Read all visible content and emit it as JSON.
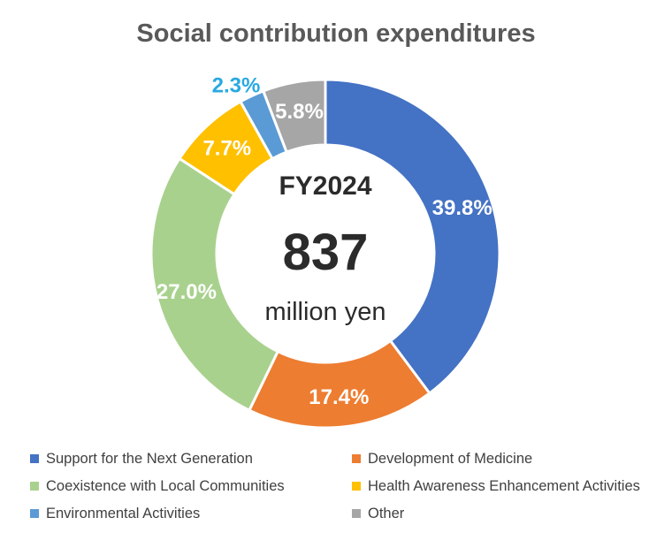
{
  "title": "Social contribution expenditures",
  "center": {
    "fiscal_year": "FY2024",
    "value": "837",
    "unit": "million yen"
  },
  "chart_data": {
    "type": "pie",
    "subtype": "donut",
    "title": "Social contribution expenditures",
    "categories": [
      "Support for the Next Generation",
      "Development of Medicine",
      "Coexistence with Local Communities",
      "Health Awareness Enhancement Activities",
      "Environmental Activities",
      "Other"
    ],
    "values": [
      39.8,
      17.4,
      27.0,
      7.7,
      2.3,
      5.8
    ],
    "labels": [
      "39.8%",
      "17.4%",
      "27.0%",
      "7.7%",
      "2.3%",
      "5.8%"
    ],
    "colors": [
      "#4472C4",
      "#ED7D31",
      "#A9D18E",
      "#FFC000",
      "#5B9BD5",
      "#A6A6A6"
    ],
    "center_label": [
      "FY2024",
      "837",
      "million yen"
    ],
    "total_value": 837,
    "total_unit": "million yen",
    "start_angle_deg": 0,
    "direction": "clockwise",
    "inside_label_color": "#FFFFFF",
    "outside_label_index": 4,
    "outside_label_color": "#29A9E1",
    "separator_color": "#FFFFFF",
    "legend_position": "bottom",
    "legend_columns": 2
  }
}
